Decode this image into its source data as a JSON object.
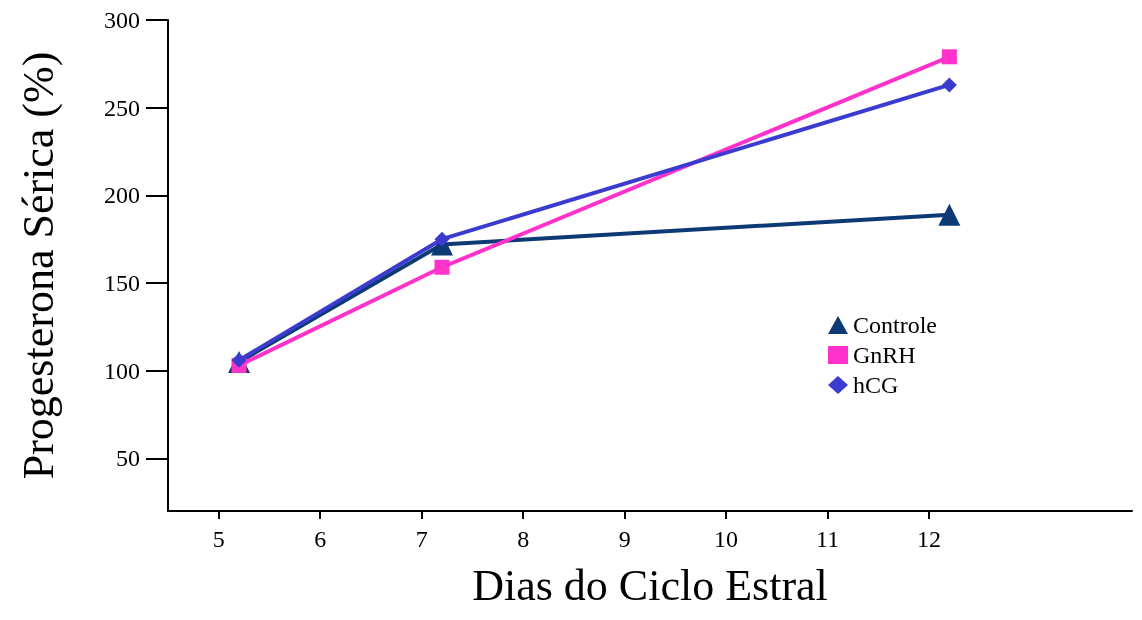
{
  "chart_data": {
    "type": "line",
    "xlabel": "Dias do Ciclo Estral",
    "ylabel": "Progesterona Sérica (%)",
    "xlim": [
      4.5,
      14
    ],
    "xticks": [
      5,
      6,
      7,
      8,
      9,
      10,
      11,
      12
    ],
    "ylim": [
      20,
      300
    ],
    "yticks": [
      50,
      100,
      150,
      200,
      250,
      300
    ],
    "grid": false,
    "legend": "right",
    "line_style": "solid",
    "series": [
      {
        "name": "Controle",
        "color": "#0d3a75",
        "marker": "triangle",
        "x": [
          5.2,
          7.2,
          12.2
        ],
        "values": [
          105,
          172,
          189
        ]
      },
      {
        "name": "GnRH",
        "color": "#ff33cc",
        "marker": "square",
        "x": [
          5.2,
          7.2,
          12.2
        ],
        "values": [
          103,
          159,
          279
        ]
      },
      {
        "name": "hCG",
        "color": "#3b3bd0",
        "marker": "diamond",
        "x": [
          5.2,
          7.2,
          12.2
        ],
        "values": [
          106,
          175,
          263
        ]
      }
    ]
  }
}
